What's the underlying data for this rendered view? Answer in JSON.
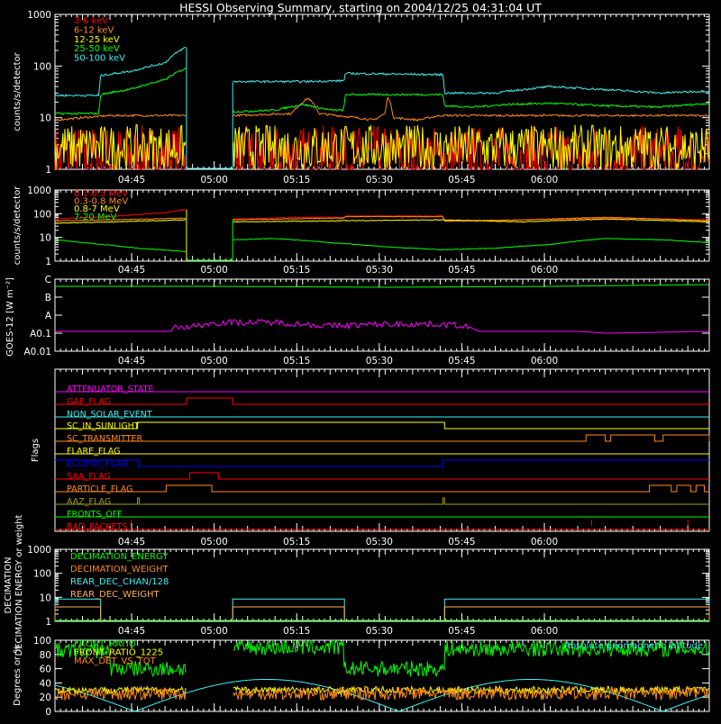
{
  "title": "HESSI Observing Summary, starting on 2004/12/25 04:31:04 UT",
  "colors": {
    "red": "#ff0000",
    "orange": "#ff8a1c",
    "yellow": "#ffff00",
    "green": "#00ff00",
    "cyan": "#3ff0f0",
    "magenta": "#ff00ff",
    "blue": "#0000ff",
    "white": "#ffffff",
    "olive": "#a0a020",
    "drab": "#ffb050"
  },
  "time_ticks": [
    "04:45",
    "05:00",
    "05:15",
    "05:30",
    "05:45",
    "06:00"
  ],
  "chart_data": [
    {
      "id": "lowE",
      "type": "line",
      "ylabel": "counts/s/detector",
      "yscale": "log",
      "ylim": [
        1,
        1000
      ],
      "y_ticks": [
        "1",
        "10",
        "100",
        "1000"
      ],
      "x_range_min": [
        0,
        118.9
      ],
      "gaps_min": [
        [
          23.9,
          32.3
        ]
      ],
      "series": [
        {
          "name": "3-6 keV",
          "color": "red",
          "style": "noisy",
          "base": 1.6,
          "jitter": 0.65
        },
        {
          "name": "6-12 keV",
          "color": "orange",
          "pts": [
            [
              0,
              9
            ],
            [
              10,
              11
            ],
            [
              23.7,
              11
            ],
            [
              32.5,
              11
            ],
            [
              43,
              12
            ],
            [
              46,
              24
            ],
            [
              48,
              12
            ],
            [
              58,
              9
            ],
            [
              60,
              12
            ],
            [
              60.5,
              26
            ],
            [
              61.5,
              10
            ],
            [
              66,
              9
            ],
            [
              70,
              11
            ],
            [
              80,
              11
            ],
            [
              118.9,
              11
            ]
          ]
        },
        {
          "name": "12-25 keV",
          "color": "yellow",
          "style": "noisy",
          "base": 2.6,
          "jitter": 0.45
        },
        {
          "name": "25-50 keV",
          "color": "green",
          "pts": [
            [
              0,
              12
            ],
            [
              8,
              12
            ],
            [
              8.3,
              28
            ],
            [
              14,
              36
            ],
            [
              20,
              54
            ],
            [
              23.7,
              90
            ],
            [
              32.5,
              13
            ],
            [
              40,
              14
            ],
            [
              45,
              18
            ],
            [
              50,
              14
            ],
            [
              52.5,
              14
            ],
            [
              52.8,
              28
            ],
            [
              70.5,
              28
            ],
            [
              70.8,
              17
            ],
            [
              76,
              16
            ],
            [
              82,
              18
            ],
            [
              90,
              19
            ],
            [
              100,
              17
            ],
            [
              110,
              16
            ],
            [
              118.9,
              19
            ]
          ]
        },
        {
          "name": "50-100 keV",
          "color": "cyan",
          "pts": [
            [
              0,
              27
            ],
            [
              8,
              27
            ],
            [
              8.3,
              65
            ],
            [
              14,
              80
            ],
            [
              20,
              115
            ],
            [
              23.7,
              230
            ],
            [
              32.5,
              50
            ],
            [
              45,
              50
            ],
            [
              52.5,
              52
            ],
            [
              52.8,
              72
            ],
            [
              70.5,
              68
            ],
            [
              70.8,
              30
            ],
            [
              80,
              30
            ],
            [
              90,
              40
            ],
            [
              100,
              35
            ],
            [
              110,
              30
            ],
            [
              118.9,
              33
            ]
          ]
        }
      ]
    },
    {
      "id": "highE",
      "type": "line",
      "ylabel": "counts/s/detector",
      "yscale": "log",
      "ylim": [
        1,
        1000
      ],
      "y_ticks": [
        "1",
        "10",
        "100",
        "1000"
      ],
      "x_range_min": [
        0,
        118.9
      ],
      "gaps_min": [
        [
          23.9,
          32.3
        ]
      ],
      "series": [
        {
          "name": "0.1-0.3 MeV",
          "color": "red",
          "pts": [
            [
              0,
              60
            ],
            [
              10,
              75
            ],
            [
              20,
              110
            ],
            [
              23.7,
              150
            ],
            [
              32.5,
              60
            ],
            [
              45,
              70
            ],
            [
              52.5,
              70
            ],
            [
              52.8,
              80
            ],
            [
              70.5,
              80
            ],
            [
              70.8,
              50
            ],
            [
              85,
              55
            ],
            [
              100,
              65
            ],
            [
              110,
              60
            ],
            [
              118.9,
              55
            ]
          ]
        },
        {
          "name": "0.3-0.8 MeV",
          "color": "orange",
          "pts": [
            [
              0,
              50
            ],
            [
              10,
              55
            ],
            [
              23.7,
              65
            ],
            [
              32.5,
              55
            ],
            [
              45,
              62
            ],
            [
              52.5,
              65
            ],
            [
              52.8,
              75
            ],
            [
              70.5,
              75
            ],
            [
              70.8,
              48
            ],
            [
              85,
              55
            ],
            [
              100,
              70
            ],
            [
              110,
              60
            ],
            [
              118.9,
              50
            ]
          ]
        },
        {
          "name": "0.8-7 MeV",
          "color": "yellow",
          "pts": [
            [
              0,
              40
            ],
            [
              10,
              45
            ],
            [
              23.7,
              55
            ],
            [
              32.5,
              45
            ],
            [
              50,
              50
            ],
            [
              70.5,
              55
            ],
            [
              85,
              45
            ],
            [
              100,
              60
            ],
            [
              118.9,
              45
            ]
          ]
        },
        {
          "name": "7-20 MeV",
          "color": "green",
          "pts": [
            [
              0,
              8
            ],
            [
              5,
              6
            ],
            [
              15,
              3.5
            ],
            [
              23.7,
              2.5
            ],
            [
              32.5,
              8
            ],
            [
              40,
              9
            ],
            [
              50,
              6
            ],
            [
              60,
              4
            ],
            [
              70,
              3
            ],
            [
              80,
              3.5
            ],
            [
              90,
              5
            ],
            [
              100,
              9
            ],
            [
              110,
              8
            ],
            [
              118.9,
              6
            ]
          ]
        }
      ]
    },
    {
      "id": "goes",
      "type": "line",
      "ylabel": "GOES-12 [W m⁻²]",
      "y_tick_labels": [
        "A0.01",
        "A0.1",
        "A",
        "B",
        "C"
      ],
      "series": [
        {
          "name": "green",
          "color": "green",
          "pts": [
            [
              0,
              3.6
            ],
            [
              30,
              3.6
            ],
            [
              60,
              3.55
            ],
            [
              90,
              3.6
            ],
            [
              118.9,
              3.7
            ]
          ]
        },
        {
          "name": "magenta",
          "color": "magenta",
          "pts": [
            [
              0,
              1.1
            ],
            [
              21,
              1.1
            ],
            [
              22,
              1.5
            ],
            [
              23,
              1.3
            ],
            [
              30,
              1.6
            ],
            [
              40,
              1.6
            ],
            [
              50,
              1.4
            ],
            [
              60,
              1.5
            ],
            [
              70,
              1.5
            ],
            [
              75,
              1.4
            ],
            [
              77,
              1.1
            ],
            [
              95,
              1.1
            ],
            [
              100,
              1.0
            ],
            [
              118.9,
              1.1
            ]
          ]
        }
      ]
    },
    {
      "id": "flags",
      "type": "line",
      "ylabel": "Flags",
      "series": [
        {
          "name": "ATTENUATOR_STATE",
          "color": "magenta"
        },
        {
          "name": "GAP_FLAG",
          "color": "red"
        },
        {
          "name": "NON_SOLAR_EVENT",
          "color": "cyan"
        },
        {
          "name": "SC_IN_SUNLIGHT",
          "color": "yellow"
        },
        {
          "name": "SC_TRANSMITTER",
          "color": "orange"
        },
        {
          "name": "FLARE_FLAG",
          "color": "yellow"
        },
        {
          "name": "ECLIPSE_FLAG",
          "color": "blue"
        },
        {
          "name": "SAA_FLAG",
          "color": "red"
        },
        {
          "name": "PARTICLE_FLAG",
          "color": "orange"
        },
        {
          "name": "AAZ_FLAG",
          "color": "olive"
        },
        {
          "name": "FRONTS_OFF",
          "color": "green"
        },
        {
          "name": "BAD_PACKETS",
          "color": "red"
        }
      ]
    },
    {
      "id": "decim",
      "type": "line",
      "ylabel": "DECIMATION ENERGY or weight",
      "yscale": "log",
      "ylim": [
        1,
        1000
      ],
      "y_ticks": [
        "1",
        "10",
        "100",
        "1000"
      ],
      "series": [
        {
          "name": "DECIMATION_ENERGY",
          "color": "green"
        },
        {
          "name": "DECIMATION_WEIGHT",
          "color": "orange"
        },
        {
          "name": "REAR_DEC_CHAN/128",
          "color": "cyan"
        },
        {
          "name": "REAR_DEC_WEIGHT",
          "color": "drab"
        }
      ]
    },
    {
      "id": "ratio",
      "type": "line",
      "ylabel": "Degrees or %",
      "ylim": [
        0,
        100
      ],
      "y_ticks": [
        "0",
        "20",
        "40",
        "60",
        "80",
        "100"
      ],
      "annotation": "Absolute geomagnetic latitude",
      "series": [
        {
          "name": "FRONT_RATIO",
          "color": "green"
        },
        {
          "name": "FRONT_RATIO_1225",
          "color": "yellow"
        },
        {
          "name": "MAX_DET_VS_TOT",
          "color": "orange"
        }
      ]
    }
  ]
}
